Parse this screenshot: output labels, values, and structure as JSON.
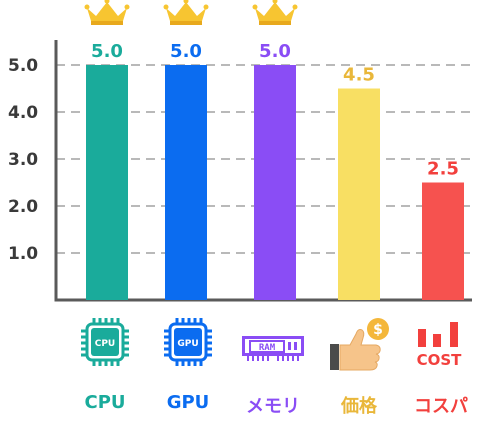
{
  "chart_data": {
    "type": "bar",
    "categories": [
      "CPU",
      "GPU",
      "メモリ",
      "価格",
      "コスパ"
    ],
    "values": [
      5.0,
      5.0,
      5.0,
      4.5,
      2.5
    ],
    "value_labels": [
      "5.0",
      "5.0",
      "5.0",
      "4.5",
      "2.5"
    ],
    "bar_colors": [
      "#1aab9b",
      "#0b6cf0",
      "#8a4df5",
      "#f8df63",
      "#f6524f"
    ],
    "label_colors": [
      "#1aab9b",
      "#0b6cf0",
      "#8a4df5",
      "#e9b73a",
      "#f2403d"
    ],
    "yticks": [
      "1.0",
      "2.0",
      "3.0",
      "4.0",
      "5.0"
    ],
    "ylim": [
      0,
      5.5
    ],
    "grid": true,
    "crowned": [
      true,
      true,
      true,
      false,
      false
    ],
    "title": "",
    "xlabel": "",
    "ylabel": ""
  },
  "icons": [
    {
      "name": "cpu-chip-icon",
      "text": "CPU",
      "color": "#1aab9b"
    },
    {
      "name": "gpu-chip-icon",
      "text": "GPU",
      "color": "#0b6cf0"
    },
    {
      "name": "ram-module-icon",
      "text": "RAM",
      "color": "#8a4df5"
    },
    {
      "name": "thumbs-up-coin-icon",
      "text": "$",
      "color": "#e9b73a"
    },
    {
      "name": "cost-bars-icon",
      "text": "COST",
      "color": "#f2403d"
    }
  ]
}
